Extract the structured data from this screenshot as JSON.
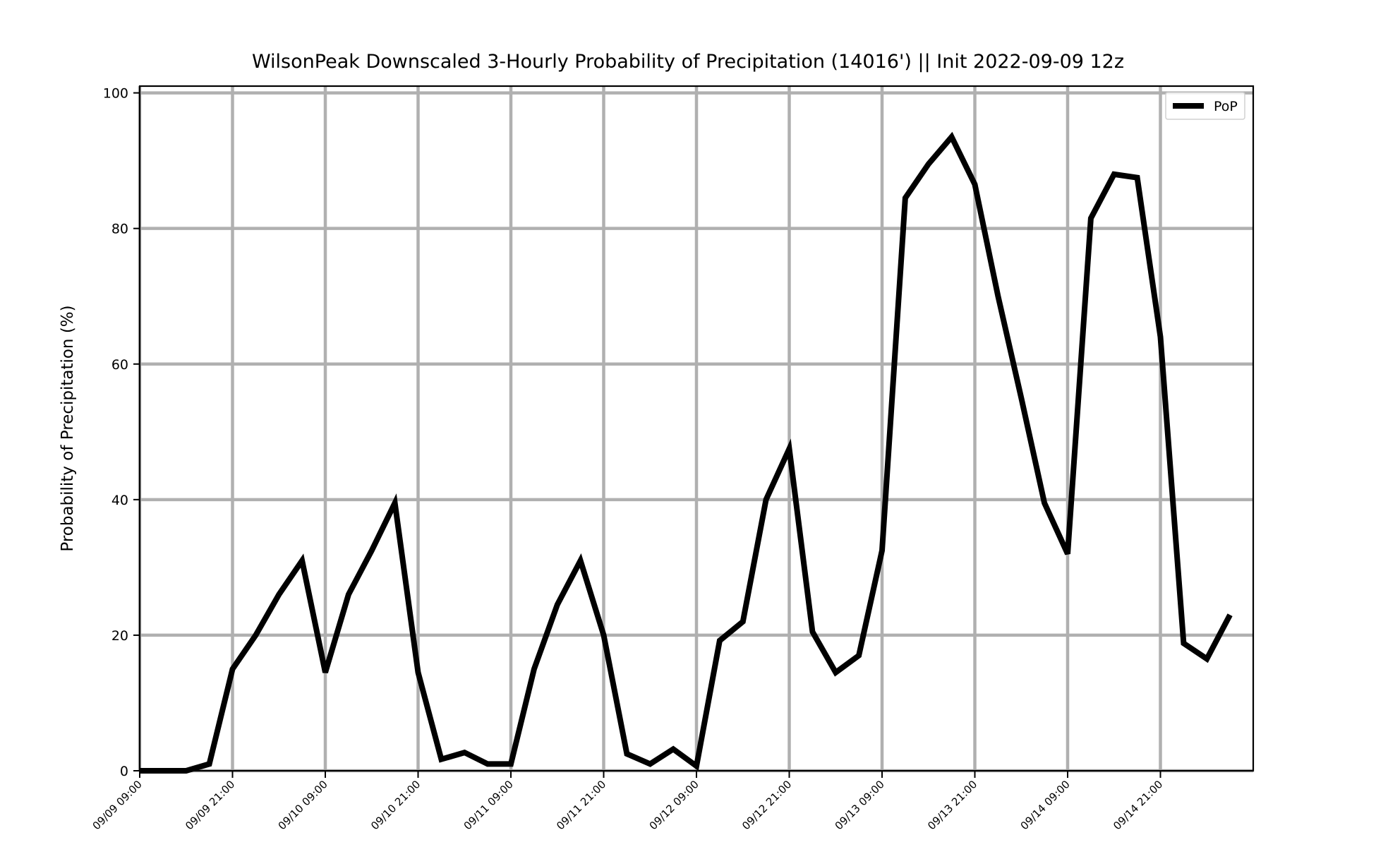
{
  "chart_data": {
    "type": "line",
    "title": "WilsonPeak Downscaled 3-Hourly Probability of Precipitation (14016') || Init 2022-09-09 12z",
    "xlabel": "",
    "ylabel": "Probability of Precipitation (%)",
    "ylim": [
      0,
      101
    ],
    "xlim": [
      "09/09 09:00",
      "09/15 09:00"
    ],
    "yticks": [
      0,
      20,
      40,
      60,
      80,
      100
    ],
    "xticks": [
      "09/09 09:00",
      "09/09 21:00",
      "09/10 09:00",
      "09/10 21:00",
      "09/11 09:00",
      "09/11 21:00",
      "09/12 09:00",
      "09/12 21:00",
      "09/13 09:00",
      "09/13 21:00",
      "09/14 09:00",
      "09/14 21:00"
    ],
    "x_step_hours": 3,
    "grid": true,
    "legend_position": "top-right",
    "series": [
      {
        "name": "PoP",
        "color": "#000000",
        "values": [
          0,
          0,
          0,
          1,
          15,
          20,
          26,
          31,
          14.5,
          26,
          32.5,
          39.5,
          14.5,
          1.7,
          2.7,
          1,
          1,
          15,
          24.5,
          31,
          20,
          2.5,
          1,
          3.2,
          0.7,
          19.2,
          22,
          40,
          47.5,
          20.5,
          14.5,
          17,
          32.5,
          84.5,
          89.5,
          93.5,
          86.5,
          70,
          55,
          39.5,
          32,
          81.5,
          88,
          87.5,
          64,
          18.8,
          16.5,
          23
        ]
      }
    ]
  },
  "colors": {
    "line": "#000000",
    "grid": "#b0b0b0",
    "axes": "#000000",
    "background": "#ffffff"
  }
}
